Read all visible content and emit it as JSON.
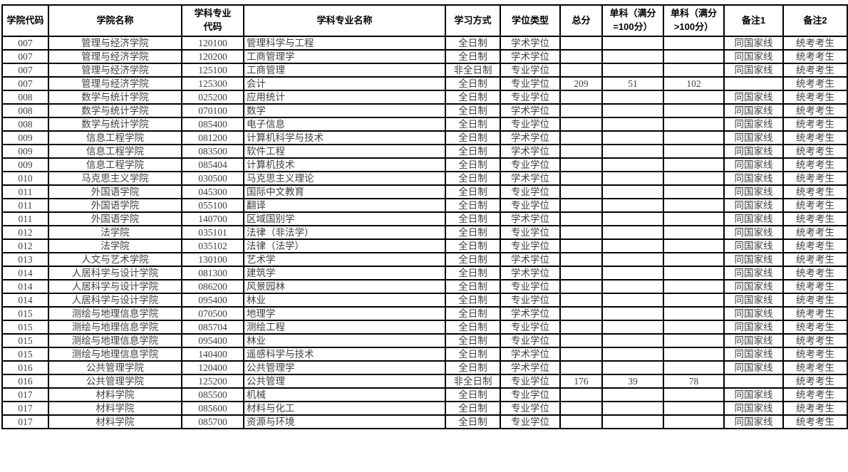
{
  "table": {
    "columns": [
      {
        "label": "学院代码"
      },
      {
        "label": "学院名称"
      },
      {
        "label": "学科专业\n代码"
      },
      {
        "label": "学科专业名称"
      },
      {
        "label": "学习方式"
      },
      {
        "label": "学位类型"
      },
      {
        "label": "总分"
      },
      {
        "label": "单科（满分\n=100分）"
      },
      {
        "label": "单科（满分\n>100分）"
      },
      {
        "label": "备注1"
      },
      {
        "label": "备注2"
      }
    ],
    "rows": [
      [
        "007",
        "管理与经济学院",
        "120100",
        "管理科学与工程",
        "全日制",
        "学术学位",
        "",
        "",
        "",
        "同国家线",
        "统考考生"
      ],
      [
        "007",
        "管理与经济学院",
        "120200",
        "工商管理学",
        "全日制",
        "学术学位",
        "",
        "",
        "",
        "同国家线",
        "统考考生"
      ],
      [
        "007",
        "管理与经济学院",
        "125100",
        "工商管理",
        "非全日制",
        "专业学位",
        "",
        "",
        "",
        "同国家线",
        "统考考生"
      ],
      [
        "007",
        "管理与经济学院",
        "125300",
        "会计",
        "全日制",
        "专业学位",
        "209",
        "51",
        "102",
        "",
        "统考考生"
      ],
      [
        "008",
        "数学与统计学院",
        "025200",
        "应用统计",
        "全日制",
        "专业学位",
        "",
        "",
        "",
        "同国家线",
        "统考考生"
      ],
      [
        "008",
        "数学与统计学院",
        "070100",
        "数学",
        "全日制",
        "学术学位",
        "",
        "",
        "",
        "同国家线",
        "统考考生"
      ],
      [
        "008",
        "数学与统计学院",
        "085400",
        "电子信息",
        "全日制",
        "专业学位",
        "",
        "",
        "",
        "同国家线",
        "统考考生"
      ],
      [
        "009",
        "信息工程学院",
        "081200",
        "计算机科学与技术",
        "全日制",
        "学术学位",
        "",
        "",
        "",
        "同国家线",
        "统考考生"
      ],
      [
        "009",
        "信息工程学院",
        "083500",
        "软件工程",
        "全日制",
        "学术学位",
        "",
        "",
        "",
        "同国家线",
        "统考考生"
      ],
      [
        "009",
        "信息工程学院",
        "085404",
        "计算机技术",
        "全日制",
        "专业学位",
        "",
        "",
        "",
        "同国家线",
        "统考考生"
      ],
      [
        "010",
        "马克思主义学院",
        "030500",
        "马克思主义理论",
        "全日制",
        "学术学位",
        "",
        "",
        "",
        "同国家线",
        "统考考生"
      ],
      [
        "011",
        "外国语学院",
        "045300",
        "国际中文教育",
        "全日制",
        "专业学位",
        "",
        "",
        "",
        "同国家线",
        "统考考生"
      ],
      [
        "011",
        "外国语学院",
        "055100",
        "翻译",
        "全日制",
        "专业学位",
        "",
        "",
        "",
        "同国家线",
        "统考考生"
      ],
      [
        "011",
        "外国语学院",
        "140700",
        "区域国别学",
        "全日制",
        "学术学位",
        "",
        "",
        "",
        "同国家线",
        "统考考生"
      ],
      [
        "012",
        "法学院",
        "035101",
        "法律（非法学）",
        "全日制",
        "专业学位",
        "",
        "",
        "",
        "同国家线",
        "统考考生"
      ],
      [
        "012",
        "法学院",
        "035102",
        "法律（法学）",
        "全日制",
        "专业学位",
        "",
        "",
        "",
        "同国家线",
        "统考考生"
      ],
      [
        "013",
        "人文与艺术学院",
        "130100",
        "艺术学",
        "全日制",
        "学术学位",
        "",
        "",
        "",
        "同国家线",
        "统考考生"
      ],
      [
        "014",
        "人居科学与设计学院",
        "081300",
        "建筑学",
        "全日制",
        "学术学位",
        "",
        "",
        "",
        "同国家线",
        "统考考生"
      ],
      [
        "014",
        "人居科学与设计学院",
        "086200",
        "风景园林",
        "全日制",
        "专业学位",
        "",
        "",
        "",
        "同国家线",
        "统考考生"
      ],
      [
        "014",
        "人居科学与设计学院",
        "095400",
        "林业",
        "全日制",
        "专业学位",
        "",
        "",
        "",
        "同国家线",
        "统考考生"
      ],
      [
        "015",
        "测绘与地理信息学院",
        "070500",
        "地理学",
        "全日制",
        "学术学位",
        "",
        "",
        "",
        "同国家线",
        "统考考生"
      ],
      [
        "015",
        "测绘与地理信息学院",
        "085704",
        "测绘工程",
        "全日制",
        "专业学位",
        "",
        "",
        "",
        "同国家线",
        "统考考生"
      ],
      [
        "015",
        "测绘与地理信息学院",
        "095400",
        "林业",
        "全日制",
        "专业学位",
        "",
        "",
        "",
        "同国家线",
        "统考考生"
      ],
      [
        "015",
        "测绘与地理信息学院",
        "140400",
        "遥感科学与技术",
        "全日制",
        "学术学位",
        "",
        "",
        "",
        "同国家线",
        "统考考生"
      ],
      [
        "016",
        "公共管理学院",
        "120400",
        "公共管理学",
        "全日制",
        "学术学位",
        "",
        "",
        "",
        "同国家线",
        "统考考生"
      ],
      [
        "016",
        "公共管理学院",
        "125200",
        "公共管理",
        "非全日制",
        "专业学位",
        "176",
        "39",
        "78",
        "",
        "统考考生"
      ],
      [
        "017",
        "材料学院",
        "085500",
        "机械",
        "全日制",
        "专业学位",
        "",
        "",
        "",
        "同国家线",
        "统考考生"
      ],
      [
        "017",
        "材料学院",
        "085600",
        "材料与化工",
        "全日制",
        "专业学位",
        "",
        "",
        "",
        "同国家线",
        "统考考生"
      ],
      [
        "017",
        "材料学院",
        "085700",
        "资源与环境",
        "全日制",
        "专业学位",
        "",
        "",
        "",
        "同国家线",
        "统考考生"
      ]
    ]
  }
}
